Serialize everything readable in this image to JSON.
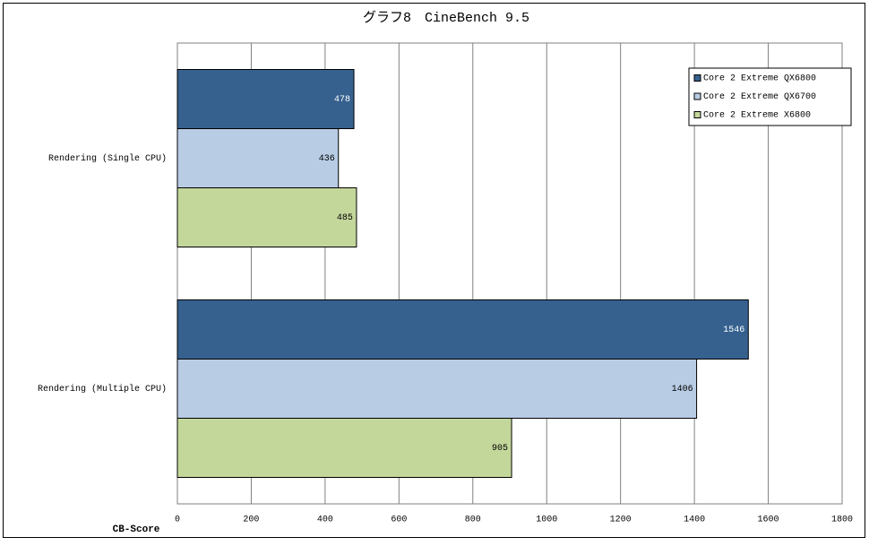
{
  "chart_data": {
    "type": "barh",
    "title": "グラフ8　CineBench 9.5",
    "categories": [
      "Rendering (Single CPU)",
      "Rendering (Multiple CPU)"
    ],
    "series": [
      {
        "name": "Core 2 Extreme QX6800",
        "color": "#36618f",
        "values": [
          478,
          1546
        ]
      },
      {
        "name": "Core 2 Extreme QX6700",
        "color": "#b8cce4",
        "values": [
          436,
          1406
        ]
      },
      {
        "name": "Core 2 Extreme X6800",
        "color": "#c4d79b",
        "values": [
          485,
          905
        ]
      }
    ],
    "x_label": "CB-Score",
    "xlim": [
      0,
      1800
    ],
    "xticks": [
      0,
      200,
      400,
      600,
      800,
      1000,
      1200,
      1400,
      1600,
      1800
    ],
    "grid": true,
    "legend": "upper right"
  }
}
